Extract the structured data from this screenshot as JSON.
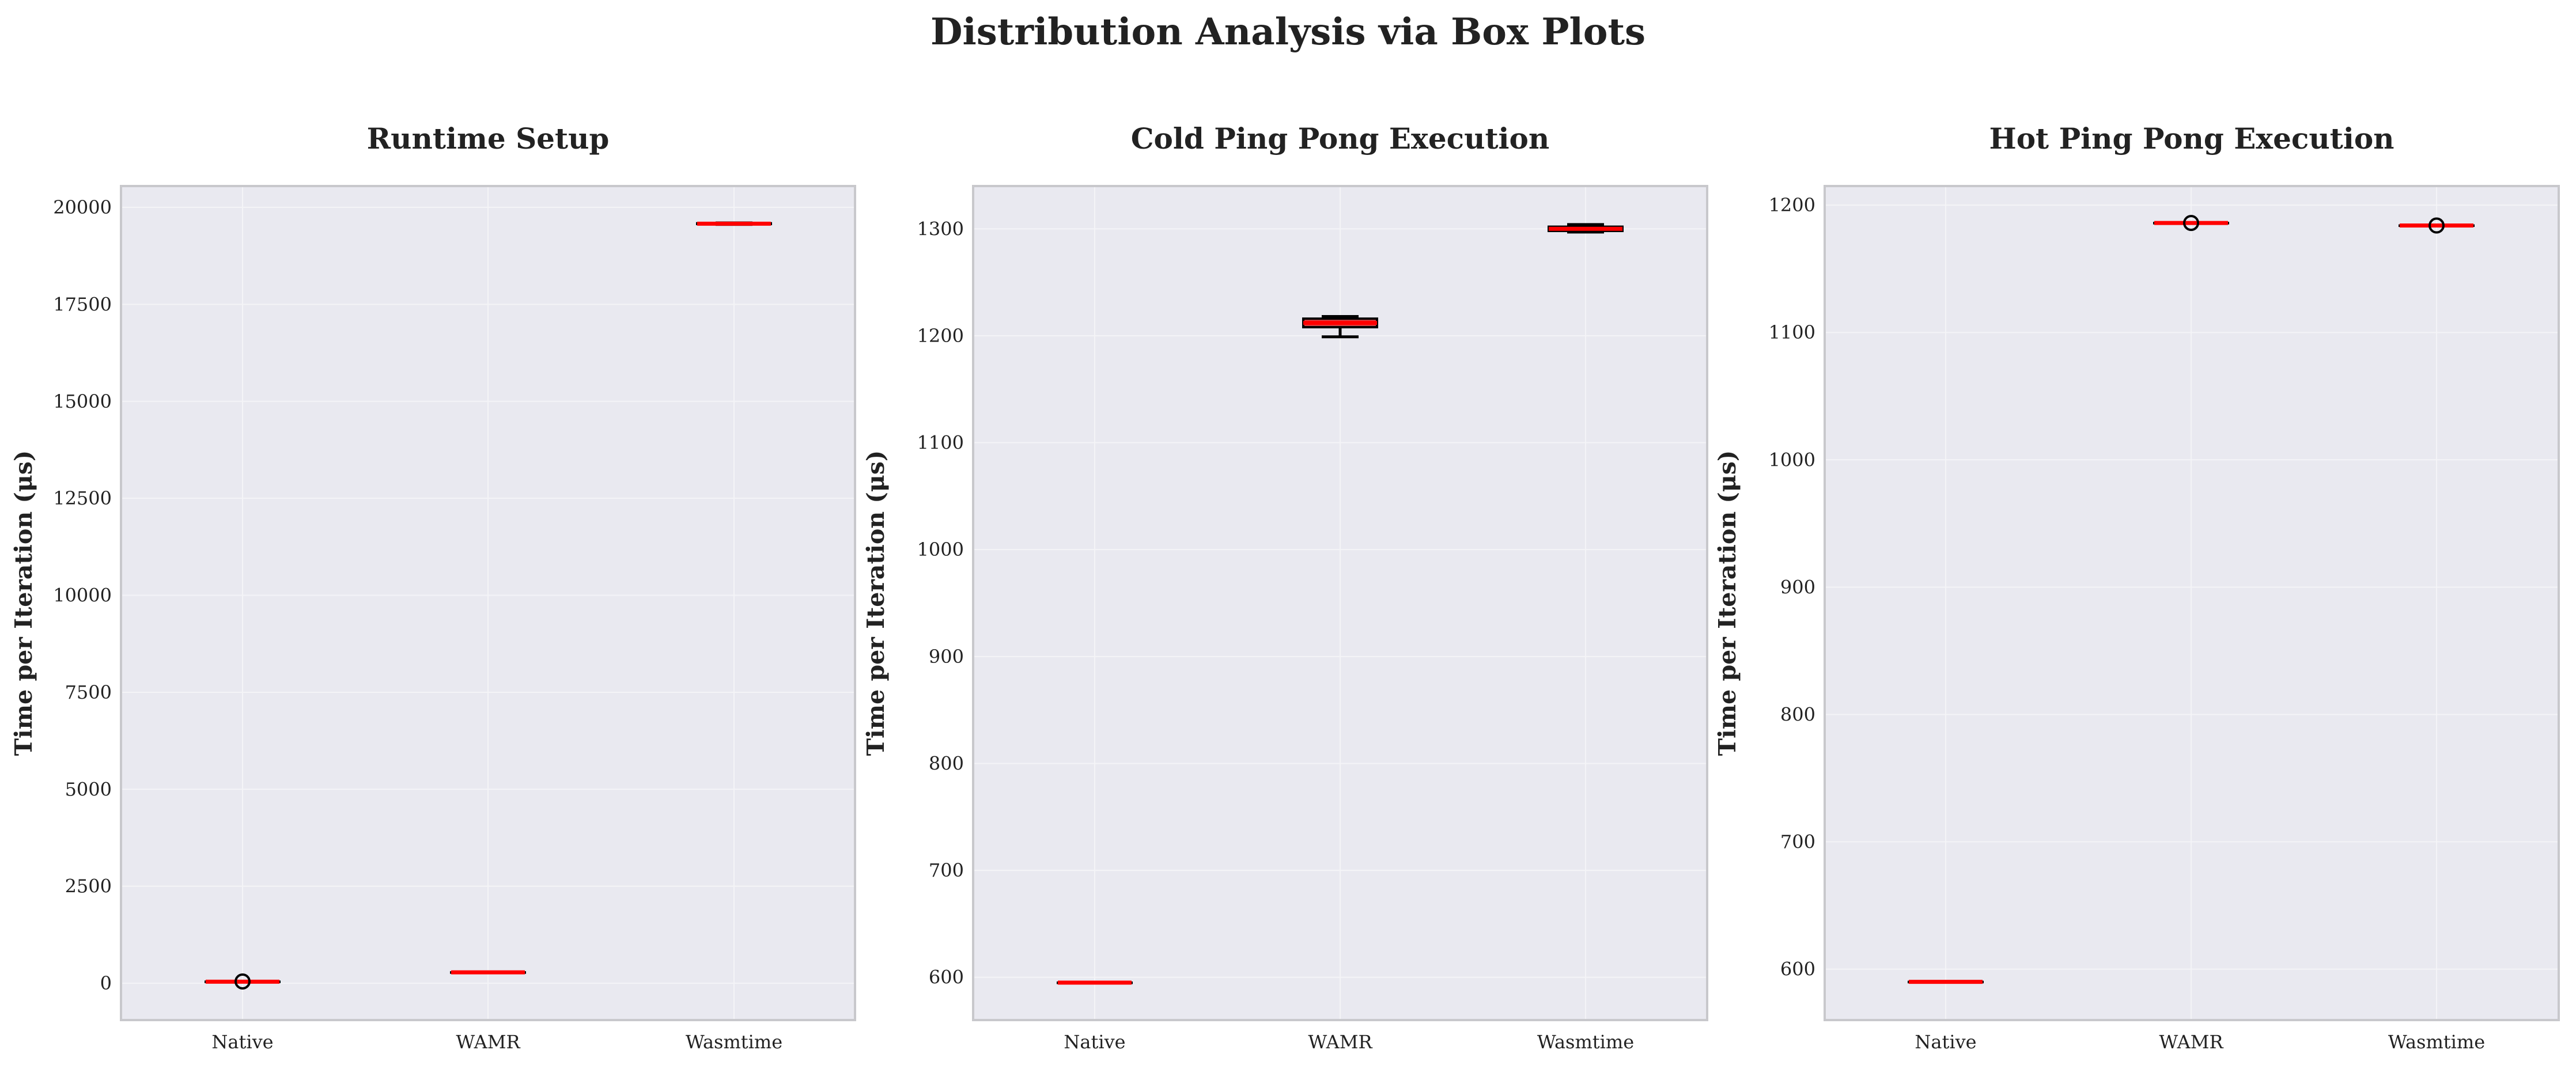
{
  "figure": {
    "title": "Distribution Analysis via Box Plots"
  },
  "style": {
    "plot_bg": "#e9e9f0",
    "frame": "#c8c8cc",
    "grid": "#f4f4f7",
    "median": "#ff0000",
    "box_fill": "#d62728",
    "whisker": "#000000",
    "text": "#222222"
  },
  "chart_data": [
    {
      "type": "box",
      "title": "Runtime Setup",
      "xlabel": "",
      "ylabel": "Time per Iteration (μs)",
      "categories": [
        "Native",
        "WAMR",
        "Wasmtime"
      ],
      "ylim": [
        -950,
        20550
      ],
      "yticks": [
        0,
        2500,
        5000,
        7500,
        10000,
        12500,
        15000,
        17500,
        20000
      ],
      "grid": true,
      "boxes": [
        {
          "category": "Native",
          "whislo": 40,
          "q1": 40,
          "median": 40,
          "q3": 40,
          "whishi": 40,
          "fliers": [
            45
          ]
        },
        {
          "category": "WAMR",
          "whislo": 280,
          "q1": 280,
          "median": 280,
          "q3": 280,
          "whishi": 280,
          "fliers": []
        },
        {
          "category": "Wasmtime",
          "whislo": 19560,
          "q1": 19570,
          "median": 19580,
          "q3": 19590,
          "whishi": 19600,
          "fliers": []
        }
      ]
    },
    {
      "type": "box",
      "title": "Cold Ping Pong Execution",
      "xlabel": "",
      "ylabel": "Time per Iteration (μs)",
      "categories": [
        "Native",
        "WAMR",
        "Wasmtime"
      ],
      "ylim": [
        560,
        1340
      ],
      "yticks": [
        600,
        700,
        800,
        900,
        1000,
        1100,
        1200,
        1300
      ],
      "grid": true,
      "boxes": [
        {
          "category": "Native",
          "whislo": 595,
          "q1": 595,
          "median": 595,
          "q3": 595,
          "whishi": 595,
          "fliers": []
        },
        {
          "category": "WAMR",
          "whislo": 1199,
          "q1": 1208,
          "median": 1212,
          "q3": 1216,
          "whishi": 1218,
          "fliers": []
        },
        {
          "category": "Wasmtime",
          "whislo": 1297,
          "q1": 1298,
          "median": 1300,
          "q3": 1302,
          "whishi": 1304,
          "fliers": []
        }
      ]
    },
    {
      "type": "box",
      "title": "Hot Ping Pong Execution",
      "xlabel": "",
      "ylabel": "Time per Iteration (μs)",
      "categories": [
        "Native",
        "WAMR",
        "Wasmtime"
      ],
      "ylim": [
        560,
        1215
      ],
      "yticks": [
        600,
        700,
        800,
        900,
        1000,
        1100,
        1200
      ],
      "grid": true,
      "boxes": [
        {
          "category": "Native",
          "whislo": 590,
          "q1": 590,
          "median": 590,
          "q3": 590,
          "whishi": 590,
          "fliers": []
        },
        {
          "category": "WAMR",
          "whislo": 1186,
          "q1": 1186,
          "median": 1186,
          "q3": 1186,
          "whishi": 1186,
          "fliers": [
            1186
          ]
        },
        {
          "category": "Wasmtime",
          "whislo": 1184,
          "q1": 1184,
          "median": 1184,
          "q3": 1184,
          "whishi": 1184,
          "fliers": [
            1184
          ]
        }
      ]
    }
  ]
}
